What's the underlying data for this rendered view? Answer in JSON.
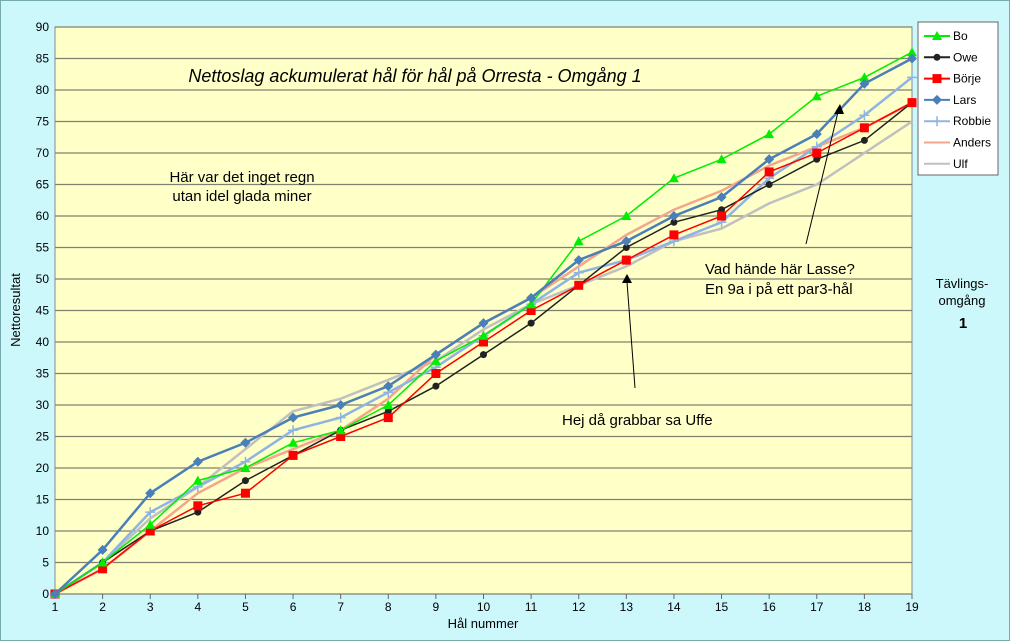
{
  "chart_data": {
    "type": "line",
    "title": "Nettoslag ackumulerat hål för hål på Orresta - Omgång 1",
    "xlabel": "Hål nummer",
    "ylabel": "Nettoresultat",
    "x": [
      1,
      2,
      3,
      4,
      5,
      6,
      7,
      8,
      9,
      10,
      11,
      12,
      13,
      14,
      15,
      16,
      17,
      18,
      19
    ],
    "ylim": [
      0,
      90
    ],
    "yticks": [
      0,
      5,
      10,
      15,
      20,
      25,
      30,
      35,
      40,
      45,
      50,
      55,
      60,
      65,
      70,
      75,
      80,
      85,
      90
    ],
    "grid": true,
    "legend_position": "right",
    "series": [
      {
        "name": "Bo",
        "color": "#00ee00",
        "marker": "triangle",
        "values": [
          0,
          5,
          11,
          18,
          20,
          24,
          26,
          30,
          37,
          41,
          46,
          56,
          60,
          66,
          69,
          73,
          79,
          82,
          86
        ]
      },
      {
        "name": "Owe",
        "color": "#222222",
        "marker": "circle",
        "values": [
          0,
          5,
          10,
          13,
          18,
          22,
          26,
          29,
          33,
          38,
          43,
          49,
          55,
          59,
          61,
          65,
          69,
          72,
          78
        ]
      },
      {
        "name": "Börje",
        "color": "#ff0000",
        "marker": "square",
        "values": [
          0,
          4,
          10,
          14,
          16,
          22,
          25,
          28,
          35,
          40,
          45,
          49,
          53,
          57,
          60,
          67,
          70,
          74,
          78
        ]
      },
      {
        "name": "Lars",
        "color": "#4a7fb8",
        "marker": "diamond",
        "values": [
          0,
          7,
          16,
          21,
          24,
          28,
          30,
          33,
          38,
          43,
          47,
          53,
          56,
          60,
          63,
          69,
          73,
          81,
          85
        ]
      },
      {
        "name": "Robbie",
        "color": "#8fb4e3",
        "marker": "plus",
        "values": [
          0,
          5,
          13,
          17,
          21,
          26,
          28,
          32,
          36,
          41,
          46,
          51,
          53,
          56,
          59,
          66,
          71,
          76,
          82
        ]
      },
      {
        "name": "Anders",
        "color": "#f4a58c",
        "marker": "none",
        "values": [
          0,
          4,
          10,
          16,
          20,
          23,
          26,
          31,
          38,
          43,
          47,
          52,
          57,
          61,
          64,
          68,
          71,
          74,
          78
        ]
      },
      {
        "name": "Ulf",
        "color": "#c0c0c0",
        "marker": "none",
        "values": [
          0,
          5,
          12,
          17,
          23,
          29,
          31,
          34,
          37,
          42,
          46,
          49,
          52,
          56,
          58,
          62,
          65,
          70,
          75
        ]
      }
    ],
    "annotations": {
      "rain_1": "Här var det inget regn",
      "rain_2": "utan idel glada miner",
      "lasse_1": "Vad hände här Lasse?",
      "lasse_2": "En 9a i på ett par3-hål",
      "uffe": "Hej då grabbar sa Uffe",
      "round_1": "Tävlings-",
      "round_2": "omgång",
      "round_num": "1"
    }
  }
}
